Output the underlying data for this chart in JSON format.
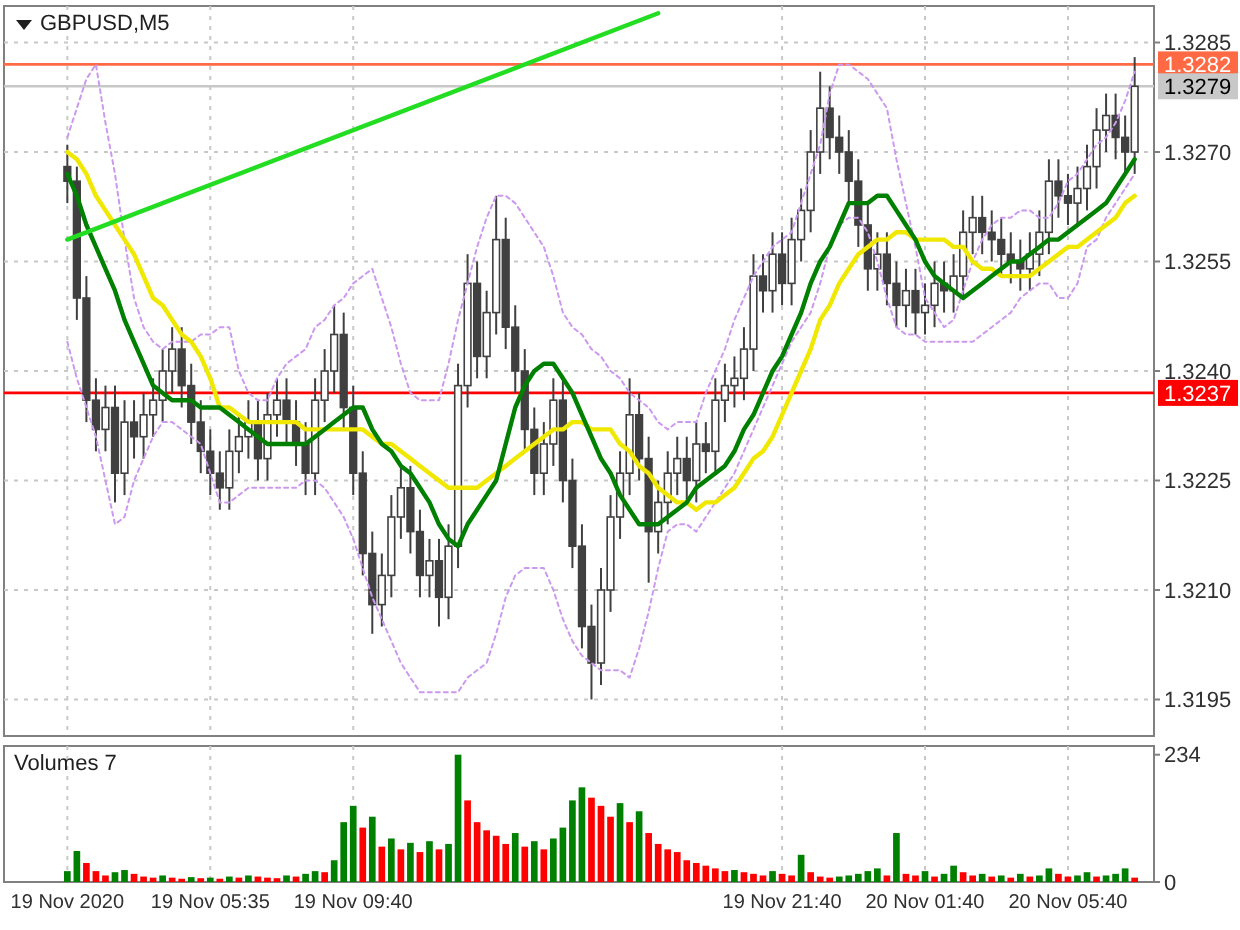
{
  "chart_data": [
    {
      "type": "candlestick",
      "title": "GBPUSD,M5",
      "color": "#404040",
      "grid": true,
      "tick_labels": "y",
      "ohlc": [
        [
          1.3268,
          1.3271,
          1.3263,
          1.3266
        ],
        [
          1.3266,
          1.3268,
          1.3247,
          1.325
        ],
        [
          1.325,
          1.3253,
          1.3233,
          1.3236
        ],
        [
          1.3236,
          1.3239,
          1.3229,
          1.3232
        ],
        [
          1.3232,
          1.3238,
          1.3229,
          1.3235
        ],
        [
          1.3235,
          1.3238,
          1.3222,
          1.3226
        ],
        [
          1.3226,
          1.3236,
          1.3223,
          1.3233
        ],
        [
          1.3233,
          1.3236,
          1.3228,
          1.3231
        ],
        [
          1.3231,
          1.3237,
          1.3228,
          1.3234
        ],
        [
          1.3234,
          1.3239,
          1.3231,
          1.3236
        ],
        [
          1.3236,
          1.3243,
          1.3233,
          1.324
        ],
        [
          1.324,
          1.3246,
          1.3237,
          1.3243
        ],
        [
          1.3243,
          1.3246,
          1.3235,
          1.3238
        ],
        [
          1.3238,
          1.3241,
          1.323,
          1.3233
        ],
        [
          1.3233,
          1.3236,
          1.3226,
          1.3229
        ],
        [
          1.3229,
          1.3232,
          1.3223,
          1.3226
        ],
        [
          1.3226,
          1.3229,
          1.3221,
          1.3224
        ],
        [
          1.3224,
          1.3232,
          1.3221,
          1.3229
        ],
        [
          1.3229,
          1.3234,
          1.3226,
          1.3231
        ],
        [
          1.3231,
          1.3236,
          1.3228,
          1.3233
        ],
        [
          1.3233,
          1.3236,
          1.3225,
          1.3228
        ],
        [
          1.3228,
          1.3237,
          1.3225,
          1.3234
        ],
        [
          1.3234,
          1.3239,
          1.3231,
          1.3236
        ],
        [
          1.3236,
          1.3239,
          1.323,
          1.3233
        ],
        [
          1.3233,
          1.3236,
          1.3227,
          1.323
        ],
        [
          1.323,
          1.3233,
          1.3223,
          1.3226
        ],
        [
          1.3226,
          1.3239,
          1.3223,
          1.3236
        ],
        [
          1.3236,
          1.3243,
          1.3233,
          1.324
        ],
        [
          1.324,
          1.3249,
          1.3237,
          1.3245
        ],
        [
          1.3245,
          1.3248,
          1.3232,
          1.3235
        ],
        [
          1.3235,
          1.3238,
          1.3223,
          1.3226
        ],
        [
          1.3226,
          1.3229,
          1.3212,
          1.3215
        ],
        [
          1.3215,
          1.3218,
          1.3204,
          1.3208
        ],
        [
          1.3208,
          1.3215,
          1.3205,
          1.3212
        ],
        [
          1.3212,
          1.3223,
          1.3209,
          1.322
        ],
        [
          1.322,
          1.3227,
          1.3217,
          1.3224
        ],
        [
          1.3224,
          1.3227,
          1.3215,
          1.3218
        ],
        [
          1.3218,
          1.3221,
          1.3209,
          1.3212
        ],
        [
          1.3212,
          1.3217,
          1.3209,
          1.3214
        ],
        [
          1.3214,
          1.3217,
          1.3205,
          1.3209
        ],
        [
          1.3209,
          1.3219,
          1.3206,
          1.3216
        ],
        [
          1.3216,
          1.3241,
          1.3213,
          1.3238
        ],
        [
          1.3238,
          1.3256,
          1.3235,
          1.3252
        ],
        [
          1.3252,
          1.3255,
          1.3239,
          1.3242
        ],
        [
          1.3242,
          1.3251,
          1.3239,
          1.3248
        ],
        [
          1.3248,
          1.3264,
          1.3245,
          1.3258
        ],
        [
          1.3258,
          1.3261,
          1.3243,
          1.3246
        ],
        [
          1.3246,
          1.3249,
          1.3237,
          1.324
        ],
        [
          1.324,
          1.3243,
          1.3229,
          1.3232
        ],
        [
          1.3232,
          1.3235,
          1.3223,
          1.3226
        ],
        [
          1.3226,
          1.3233,
          1.3223,
          1.323
        ],
        [
          1.323,
          1.3239,
          1.3227,
          1.3236
        ],
        [
          1.3236,
          1.3239,
          1.3222,
          1.3225
        ],
        [
          1.3225,
          1.3228,
          1.3213,
          1.3216
        ],
        [
          1.3216,
          1.3219,
          1.3202,
          1.3205
        ],
        [
          1.3205,
          1.3208,
          1.3195,
          1.32
        ],
        [
          1.32,
          1.3213,
          1.3197,
          1.321
        ],
        [
          1.321,
          1.3223,
          1.3207,
          1.322
        ],
        [
          1.322,
          1.3229,
          1.3217,
          1.3226
        ],
        [
          1.3226,
          1.3239,
          1.3223,
          1.3234
        ],
        [
          1.3234,
          1.3237,
          1.3225,
          1.3228
        ],
        [
          1.3228,
          1.3231,
          1.3211,
          1.3218
        ],
        [
          1.3218,
          1.3225,
          1.3215,
          1.3222
        ],
        [
          1.3222,
          1.3229,
          1.3219,
          1.3226
        ],
        [
          1.3226,
          1.3231,
          1.3223,
          1.3228
        ],
        [
          1.3228,
          1.3231,
          1.3222,
          1.3225
        ],
        [
          1.3225,
          1.3233,
          1.3222,
          1.323
        ],
        [
          1.323,
          1.3233,
          1.3226,
          1.3229
        ],
        [
          1.3229,
          1.3239,
          1.3226,
          1.3236
        ],
        [
          1.3236,
          1.3241,
          1.3233,
          1.3238
        ],
        [
          1.3238,
          1.3242,
          1.3235,
          1.3239
        ],
        [
          1.3239,
          1.3246,
          1.3236,
          1.3243
        ],
        [
          1.3243,
          1.3256,
          1.324,
          1.3253
        ],
        [
          1.3253,
          1.3256,
          1.3248,
          1.3251
        ],
        [
          1.3251,
          1.3259,
          1.3248,
          1.3256
        ],
        [
          1.3256,
          1.3259,
          1.3249,
          1.3252
        ],
        [
          1.3252,
          1.3261,
          1.3249,
          1.3258
        ],
        [
          1.3258,
          1.3265,
          1.3255,
          1.3262
        ],
        [
          1.3262,
          1.3273,
          1.3259,
          1.327
        ],
        [
          1.327,
          1.3281,
          1.3267,
          1.3276
        ],
        [
          1.3276,
          1.3279,
          1.3269,
          1.3272
        ],
        [
          1.3272,
          1.3275,
          1.3267,
          1.327
        ],
        [
          1.327,
          1.3273,
          1.3263,
          1.3266
        ],
        [
          1.3266,
          1.3269,
          1.3257,
          1.326
        ],
        [
          1.326,
          1.3263,
          1.3251,
          1.3254
        ],
        [
          1.3254,
          1.3259,
          1.3251,
          1.3256
        ],
        [
          1.3256,
          1.3259,
          1.3249,
          1.3252
        ],
        [
          1.3252,
          1.3255,
          1.3246,
          1.3249
        ],
        [
          1.3249,
          1.3254,
          1.3246,
          1.3251
        ],
        [
          1.3251,
          1.3254,
          1.3245,
          1.3248
        ],
        [
          1.3248,
          1.3252,
          1.3245,
          1.3249
        ],
        [
          1.3249,
          1.3255,
          1.3246,
          1.3252
        ],
        [
          1.3252,
          1.3255,
          1.3248,
          1.3251
        ],
        [
          1.3251,
          1.3256,
          1.3248,
          1.3253
        ],
        [
          1.3253,
          1.3262,
          1.325,
          1.3259
        ],
        [
          1.3259,
          1.3264,
          1.3256,
          1.3261
        ],
        [
          1.3261,
          1.3264,
          1.3256,
          1.3259
        ],
        [
          1.3259,
          1.3262,
          1.3255,
          1.3258
        ],
        [
          1.3258,
          1.3261,
          1.3253,
          1.3256
        ],
        [
          1.3256,
          1.3259,
          1.3252,
          1.3255
        ],
        [
          1.3255,
          1.3258,
          1.3251,
          1.3254
        ],
        [
          1.3254,
          1.3259,
          1.3251,
          1.3256
        ],
        [
          1.3256,
          1.3262,
          1.3253,
          1.3259
        ],
        [
          1.3259,
          1.3269,
          1.3256,
          1.3266
        ],
        [
          1.3266,
          1.3269,
          1.3261,
          1.3264
        ],
        [
          1.3264,
          1.3267,
          1.326,
          1.3263
        ],
        [
          1.3263,
          1.3268,
          1.326,
          1.3265
        ],
        [
          1.3265,
          1.3271,
          1.3262,
          1.3268
        ],
        [
          1.3268,
          1.3276,
          1.3265,
          1.3273
        ],
        [
          1.3273,
          1.3278,
          1.327,
          1.3275
        ],
        [
          1.3275,
          1.3278,
          1.3269,
          1.3272
        ],
        [
          1.3272,
          1.3275,
          1.3267,
          1.327
        ],
        [
          1.327,
          1.3283,
          1.3267,
          1.3279
        ]
      ],
      "series": [
        {
          "type": "line",
          "color": "#cc99ee",
          "line_style": "dotted",
          "values": [
            1.3272,
            1.3276,
            1.328,
            1.3282,
            1.3274,
            1.3267,
            1.3258,
            1.325,
            1.3246,
            1.3244,
            1.3243,
            1.3244,
            1.3244,
            1.3244,
            1.3245,
            1.3245,
            1.3246,
            1.3246,
            1.324,
            1.3237,
            1.3236,
            1.3236,
            1.3239,
            1.3241,
            1.3242,
            1.3243,
            1.3246,
            1.3247,
            1.3249,
            1.325,
            1.3252,
            1.3253,
            1.3254,
            1.325,
            1.3246,
            1.3241,
            1.3237,
            1.3236,
            1.3236,
            1.3236,
            1.3241,
            1.3247,
            1.3252,
            1.3257,
            1.3261,
            1.3264,
            1.3264,
            1.3263,
            1.3261,
            1.3259,
            1.3257,
            1.3253,
            1.3248,
            1.3246,
            1.3245,
            1.3243,
            1.3242,
            1.324,
            1.3239,
            1.3237,
            1.3236,
            1.3235,
            1.3233,
            1.3232,
            1.3233,
            1.3233,
            1.3233,
            1.3237,
            1.324,
            1.3243,
            1.3247,
            1.325,
            1.3253,
            1.3255,
            1.3257,
            1.3258,
            1.3259,
            1.3263,
            1.3267,
            1.3271,
            1.3278,
            1.3282,
            1.3282,
            1.3281,
            1.328,
            1.3278,
            1.3276,
            1.3269,
            1.3263,
            1.3257,
            1.325,
            1.3248,
            1.3246,
            1.3247,
            1.3251,
            1.3255,
            1.3258,
            1.326,
            1.3261,
            1.3261,
            1.3262,
            1.3262,
            1.3261,
            1.3261,
            1.3263,
            1.3266,
            1.3267,
            1.3269,
            1.3271,
            1.3272,
            1.3274,
            1.3277,
            1.3281
          ]
        },
        {
          "type": "line",
          "color": "#cc99ee",
          "line_style": "dotted",
          "values": [
            1.3244,
            1.3239,
            1.3235,
            1.3231,
            1.3225,
            1.3219,
            1.322,
            1.3225,
            1.3228,
            1.3231,
            1.3233,
            1.3233,
            1.3232,
            1.3231,
            1.323,
            1.3226,
            1.3222,
            1.3222,
            1.3223,
            1.3224,
            1.3224,
            1.3224,
            1.3224,
            1.3224,
            1.3224,
            1.3225,
            1.3225,
            1.3224,
            1.3222,
            1.322,
            1.3217,
            1.3213,
            1.3209,
            1.3206,
            1.3203,
            1.32,
            1.3198,
            1.3196,
            1.3196,
            1.3196,
            1.3196,
            1.3196,
            1.3198,
            1.3199,
            1.32,
            1.3204,
            1.3209,
            1.3212,
            1.3213,
            1.3213,
            1.3213,
            1.321,
            1.3206,
            1.3203,
            1.3201,
            1.32,
            1.3199,
            1.3199,
            1.3199,
            1.3198,
            1.3202,
            1.3207,
            1.3213,
            1.3218,
            1.3219,
            1.3219,
            1.3218,
            1.322,
            1.3222,
            1.3224,
            1.3226,
            1.3229,
            1.3232,
            1.3235,
            1.3238,
            1.3241,
            1.3244,
            1.3246,
            1.3248,
            1.3252,
            1.3257,
            1.326,
            1.3261,
            1.3261,
            1.3259,
            1.3255,
            1.325,
            1.3246,
            1.3245,
            1.3245,
            1.3244,
            1.3244,
            1.3244,
            1.3244,
            1.3244,
            1.3244,
            1.3245,
            1.3246,
            1.3247,
            1.3248,
            1.325,
            1.3251,
            1.3252,
            1.3252,
            1.325,
            1.325,
            1.3252,
            1.3257,
            1.3258,
            1.3261,
            1.3263,
            1.3265,
            1.3267
          ]
        },
        {
          "type": "line",
          "color": "#f0e800",
          "line_style": "solid",
          "values": [
            1.327,
            1.3269,
            1.3267,
            1.3264,
            1.3262,
            1.326,
            1.3258,
            1.3256,
            1.3253,
            1.325,
            1.3249,
            1.3247,
            1.3245,
            1.3244,
            1.3242,
            1.3239,
            1.3235,
            1.3235,
            1.3234,
            1.3233,
            1.3233,
            1.3233,
            1.3233,
            1.3233,
            1.3233,
            1.3232,
            1.3232,
            1.3232,
            1.3232,
            1.3232,
            1.3232,
            1.3232,
            1.3231,
            1.323,
            1.323,
            1.3229,
            1.3228,
            1.3227,
            1.3226,
            1.3225,
            1.3224,
            1.3224,
            1.3224,
            1.3224,
            1.3225,
            1.3226,
            1.3227,
            1.3228,
            1.3229,
            1.323,
            1.3231,
            1.3232,
            1.3232,
            1.3233,
            1.3233,
            1.3232,
            1.3232,
            1.3232,
            1.323,
            1.3229,
            1.3227,
            1.3226,
            1.3224,
            1.3223,
            1.3222,
            1.3222,
            1.3221,
            1.3222,
            1.3222,
            1.3223,
            1.3224,
            1.3226,
            1.3228,
            1.3229,
            1.3231,
            1.3234,
            1.3237,
            1.324,
            1.3243,
            1.3247,
            1.3249,
            1.3252,
            1.3254,
            1.3256,
            1.3257,
            1.3258,
            1.3258,
            1.3259,
            1.3259,
            1.3258,
            1.3258,
            1.3258,
            1.3258,
            1.3257,
            1.3257,
            1.3255,
            1.3254,
            1.3254,
            1.3253,
            1.3253,
            1.3253,
            1.3253,
            1.3254,
            1.3255,
            1.3256,
            1.3257,
            1.3257,
            1.3258,
            1.3259,
            1.326,
            1.3261,
            1.3263,
            1.3264
          ]
        },
        {
          "type": "line",
          "color": "#008000",
          "line_style": "solid",
          "values": [
            1.3267,
            1.3264,
            1.326,
            1.3257,
            1.3254,
            1.3251,
            1.3247,
            1.3244,
            1.3241,
            1.3238,
            1.3237,
            1.3236,
            1.3236,
            1.3236,
            1.3235,
            1.3235,
            1.3235,
            1.3234,
            1.3233,
            1.3232,
            1.3231,
            1.323,
            1.323,
            1.323,
            1.323,
            1.323,
            1.3231,
            1.3232,
            1.3233,
            1.3234,
            1.3235,
            1.3235,
            1.3232,
            1.323,
            1.3229,
            1.3227,
            1.3226,
            1.3224,
            1.3222,
            1.3219,
            1.3217,
            1.3216,
            1.3219,
            1.3221,
            1.3223,
            1.3225,
            1.323,
            1.3235,
            1.3238,
            1.324,
            1.3241,
            1.3241,
            1.3239,
            1.3237,
            1.3234,
            1.3231,
            1.3228,
            1.3226,
            1.3223,
            1.3221,
            1.3219,
            1.3219,
            1.3219,
            1.322,
            1.3221,
            1.3222,
            1.3224,
            1.3225,
            1.3226,
            1.3227,
            1.3229,
            1.3232,
            1.3234,
            1.3237,
            1.324,
            1.3242,
            1.3245,
            1.3248,
            1.3252,
            1.3255,
            1.3257,
            1.326,
            1.3263,
            1.3263,
            1.3263,
            1.3264,
            1.3264,
            1.3262,
            1.326,
            1.3258,
            1.3255,
            1.3253,
            1.3252,
            1.3251,
            1.325,
            1.3251,
            1.3252,
            1.3253,
            1.3254,
            1.3255,
            1.3255,
            1.3256,
            1.3257,
            1.3258,
            1.3258,
            1.3259,
            1.326,
            1.3261,
            1.3262,
            1.3263,
            1.3265,
            1.3267,
            1.3269
          ]
        },
        {
          "type": "line",
          "color": "#22dd22",
          "line_style": "solid",
          "values": [
            1.3258,
            null,
            null,
            null,
            null,
            null,
            null,
            null,
            null,
            null,
            null,
            null,
            null,
            null,
            null,
            null,
            null,
            null,
            null,
            null,
            null,
            null,
            null,
            null,
            null,
            null,
            null,
            null,
            null,
            null,
            null,
            null,
            null,
            null,
            null,
            null,
            null,
            null,
            null,
            null,
            null,
            null,
            null,
            null,
            null,
            null,
            null,
            null,
            null,
            null,
            null,
            null,
            null,
            null,
            null,
            null,
            null,
            null,
            null,
            null,
            null,
            null,
            1.3289,
            null,
            null,
            null,
            null,
            null,
            null,
            null,
            null,
            null,
            null,
            null,
            null,
            null,
            null,
            null,
            null,
            null,
            null,
            null,
            null,
            null,
            null,
            null,
            null,
            null,
            null,
            null,
            null,
            null,
            null,
            null,
            null,
            null,
            null,
            null,
            null,
            null,
            null,
            null,
            null,
            null,
            null,
            null,
            null,
            null,
            null,
            null,
            null,
            null,
            null
          ]
        }
      ],
      "ylim": [
        1.319,
        1.329
      ],
      "yticks": [
        1.3195,
        {
          "value": 1.321,
          "label": "1.3210"
        },
        1.3225,
        {
          "value": 1.324,
          "label": "1.3240"
        },
        1.3255,
        {
          "value": 1.327,
          "label": "1.3270"
        },
        1.3285
      ],
      "ref_lines": [
        {
          "axis": "y",
          "value": 1.3282,
          "label": "1.3282",
          "color": "#ff6a45",
          "line_style": "solid"
        },
        {
          "axis": "y",
          "value": 1.3279,
          "label": "1.3279",
          "color": "#c8c8c8",
          "line_style": "solid"
        },
        {
          "axis": "y",
          "value": 1.3237,
          "label": "1.3237",
          "color": "#ff0000",
          "line_style": "solid"
        }
      ]
    },
    {
      "type": "bar",
      "title": "Volumes 7",
      "grid": "x",
      "categories": [
        "19 Nov 2020",
        null,
        null,
        null,
        null,
        null,
        null,
        null,
        null,
        null,
        null,
        null,
        null,
        null,
        null,
        "19 Nov 05:35",
        null,
        null,
        null,
        null,
        null,
        null,
        null,
        null,
        null,
        null,
        null,
        null,
        null,
        null,
        "19 Nov 09:40",
        null,
        null,
        null,
        null,
        null,
        null,
        null,
        null,
        null,
        null,
        null,
        null,
        null,
        null,
        null,
        null,
        null,
        null,
        null,
        null,
        null,
        null,
        null,
        null,
        null,
        null,
        null,
        null,
        null,
        null,
        null,
        null,
        null,
        null,
        null,
        null,
        null,
        null,
        null,
        null,
        null,
        null,
        null,
        null,
        "19 Nov 21:40",
        null,
        null,
        null,
        null,
        null,
        null,
        null,
        null,
        null,
        null,
        null,
        null,
        null,
        null,
        "20 Nov 01:40",
        null,
        null,
        null,
        null,
        null,
        null,
        null,
        null,
        null,
        null,
        null,
        null,
        null,
        null,
        "20 Nov 05:40",
        null,
        null,
        null,
        null,
        null,
        null,
        null
      ],
      "values": [
        20,
        57,
        35,
        20,
        12,
        18,
        22,
        15,
        10,
        8,
        12,
        8,
        6,
        9,
        7,
        8,
        6,
        10,
        8,
        12,
        10,
        8,
        7,
        12,
        10,
        15,
        20,
        18,
        40,
        110,
        140,
        100,
        120,
        65,
        80,
        60,
        72,
        55,
        75,
        60,
        70,
        234,
        150,
        110,
        95,
        85,
        70,
        90,
        65,
        75,
        60,
        80,
        100,
        150,
        174,
        155,
        140,
        120,
        145,
        110,
        130,
        90,
        70,
        60,
        55,
        40,
        35,
        30,
        25,
        20,
        22,
        18,
        15,
        12,
        20,
        15,
        12,
        50,
        18,
        10,
        8,
        10,
        12,
        15,
        20,
        25,
        12,
        90,
        15,
        12,
        20,
        10,
        15,
        30,
        18,
        12,
        15,
        10,
        12,
        8,
        15,
        10,
        12,
        25,
        15,
        10,
        12,
        18,
        10,
        12,
        15,
        25,
        8
      ],
      "colors": [
        "#008000",
        "#008000",
        "#ff0000",
        "#ff0000",
        "#ff0000",
        "#008000",
        "#008000",
        "#ff0000",
        "#ff0000",
        "#ff0000",
        "#008000",
        "#ff0000",
        "#ff0000",
        "#008000",
        "#ff0000",
        "#008000",
        "#ff0000",
        "#008000",
        "#ff0000",
        "#008000",
        "#ff0000",
        "#ff0000",
        "#ff0000",
        "#008000",
        "#ff0000",
        "#008000",
        "#008000",
        "#ff0000",
        "#008000",
        "#008000",
        "#008000",
        "#ff0000",
        "#008000",
        "#ff0000",
        "#008000",
        "#ff0000",
        "#008000",
        "#ff0000",
        "#008000",
        "#ff0000",
        "#008000",
        "#008000",
        "#ff0000",
        "#ff0000",
        "#ff0000",
        "#ff0000",
        "#ff0000",
        "#008000",
        "#ff0000",
        "#008000",
        "#ff0000",
        "#008000",
        "#008000",
        "#008000",
        "#008000",
        "#ff0000",
        "#ff0000",
        "#ff0000",
        "#008000",
        "#ff0000",
        "#008000",
        "#ff0000",
        "#ff0000",
        "#ff0000",
        "#ff0000",
        "#ff0000",
        "#ff0000",
        "#ff0000",
        "#ff0000",
        "#ff0000",
        "#008000",
        "#ff0000",
        "#ff0000",
        "#ff0000",
        "#008000",
        "#ff0000",
        "#ff0000",
        "#008000",
        "#ff0000",
        "#ff0000",
        "#ff0000",
        "#008000",
        "#008000",
        "#008000",
        "#008000",
        "#008000",
        "#ff0000",
        "#008000",
        "#ff0000",
        "#ff0000",
        "#008000",
        "#ff0000",
        "#008000",
        "#008000",
        "#ff0000",
        "#ff0000",
        "#008000",
        "#ff0000",
        "#008000",
        "#ff0000",
        "#008000",
        "#ff0000",
        "#008000",
        "#008000",
        "#ff0000",
        "#ff0000",
        "#008000",
        "#008000",
        "#ff0000",
        "#008000",
        "#008000",
        "#008000",
        "#ff0000"
      ],
      "ylim": [
        0,
        250
      ],
      "yticks": [
        0,
        234
      ]
    }
  ]
}
